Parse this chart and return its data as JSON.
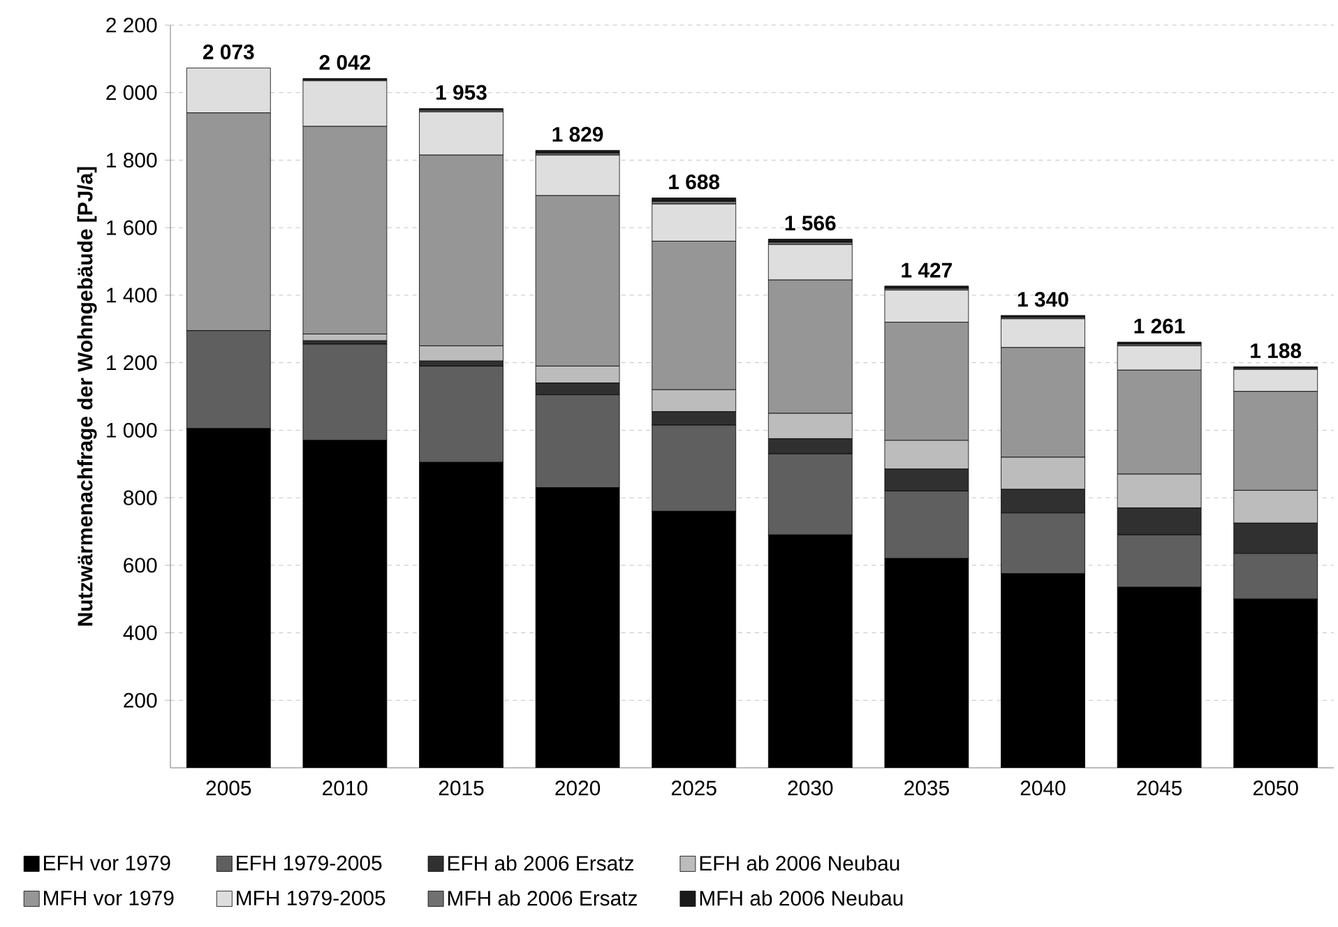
{
  "chart_data": {
    "type": "bar",
    "stacked": true,
    "ylabel": "Nutzwärmenachfrage der Wohngebäude [PJ/a]",
    "categories": [
      "2005",
      "2010",
      "2015",
      "2020",
      "2025",
      "2030",
      "2035",
      "2040",
      "2045",
      "2050"
    ],
    "series": [
      {
        "name": "EFH vor 1979",
        "color": "#000000",
        "values": [
          1005,
          970,
          905,
          830,
          760,
          690,
          620,
          575,
          535,
          500
        ]
      },
      {
        "name": "EFH 1979-2005",
        "color": "#5f5f5f",
        "values": [
          290,
          285,
          285,
          275,
          255,
          240,
          200,
          180,
          155,
          135
        ]
      },
      {
        "name": "EFH ab 2006 Ersatz",
        "color": "#303030",
        "values": [
          0,
          10,
          15,
          35,
          40,
          45,
          65,
          70,
          80,
          90
        ]
      },
      {
        "name": "EFH ab 2006 Neubau",
        "color": "#bcbcbc",
        "values": [
          0,
          20,
          45,
          50,
          65,
          75,
          85,
          95,
          100,
          97
        ]
      },
      {
        "name": "MFH vor 1979",
        "color": "#969696",
        "values": [
          645,
          615,
          565,
          505,
          440,
          395,
          350,
          325,
          308,
          293
        ]
      },
      {
        "name": "MFH 1979-2005",
        "color": "#dedede",
        "values": [
          133,
          135,
          128,
          120,
          110,
          105,
          95,
          85,
          72,
          65
        ]
      },
      {
        "name": "MFH ab 2006 Ersatz",
        "color": "#707070",
        "values": [
          0,
          3,
          5,
          6,
          8,
          7,
          5,
          4,
          5,
          3
        ]
      },
      {
        "name": "MFH ab 2006 Neubau",
        "color": "#1a1a1a",
        "values": [
          0,
          4,
          5,
          8,
          10,
          9,
          7,
          6,
          6,
          5
        ]
      }
    ],
    "totals": [
      "2 073",
      "2 042",
      "1 953",
      "1 829",
      "1 688",
      "1 566",
      "1 427",
      "1 340",
      "1 261",
      "1 188"
    ],
    "ylim": [
      0,
      2200
    ],
    "yticks": [
      {
        "value": 200,
        "label": "200"
      },
      {
        "value": 400,
        "label": "400"
      },
      {
        "value": 600,
        "label": "600"
      },
      {
        "value": 800,
        "label": "800"
      },
      {
        "value": 1000,
        "label": "1 000"
      },
      {
        "value": 1200,
        "label": "1 200"
      },
      {
        "value": 1400,
        "label": "1 400"
      },
      {
        "value": 1600,
        "label": "1 600"
      },
      {
        "value": 1800,
        "label": "1 800"
      },
      {
        "value": 2000,
        "label": "2 000"
      },
      {
        "value": 2200,
        "label": "2 200"
      }
    ],
    "grid": "y",
    "legend": "bottom"
  }
}
